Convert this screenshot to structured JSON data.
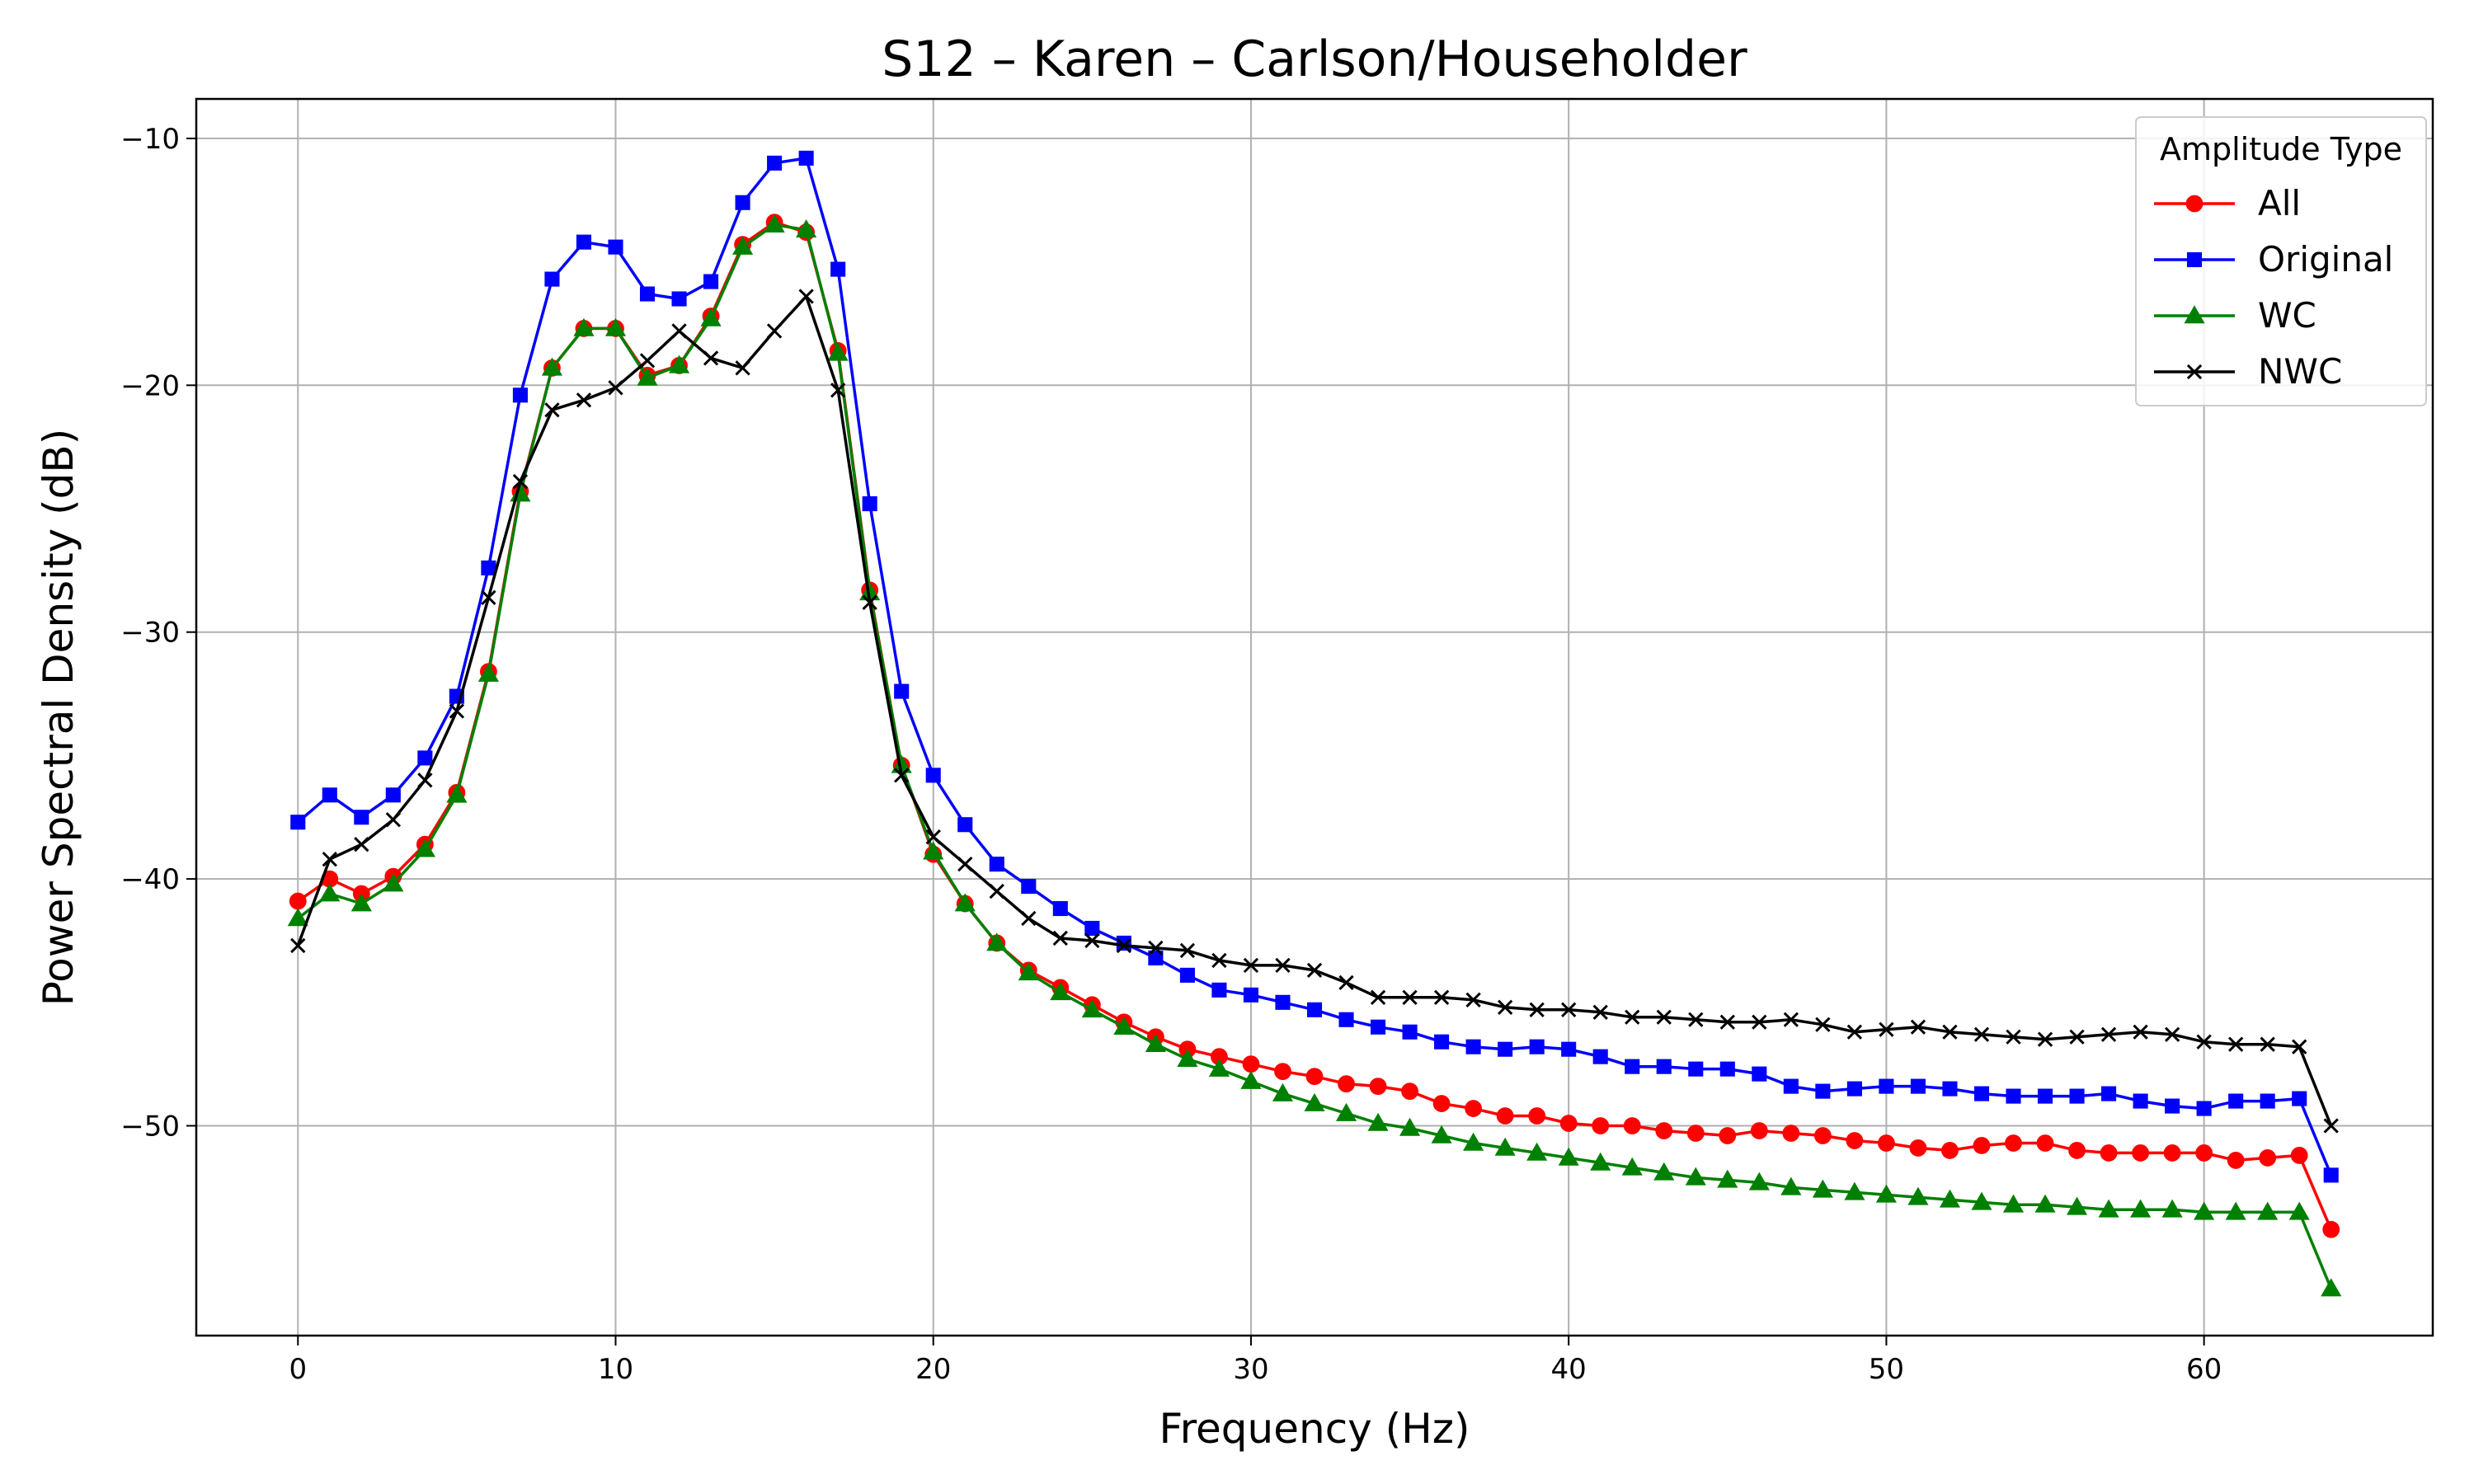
{
  "chart_data": {
    "type": "line",
    "title": "S12 – Karen – Carlson/Householder",
    "xlabel": "Frequency (Hz)",
    "ylabel": "Power Spectral Density (dB)",
    "xlim": [
      -3.2,
      67.2
    ],
    "ylim": [
      -58.5,
      -8.4
    ],
    "xticks": [
      0,
      10,
      20,
      30,
      40,
      50,
      60
    ],
    "yticks": [
      -50,
      -40,
      -30,
      -20,
      -10
    ],
    "ytick_labels": [
      "−50",
      "−40",
      "−30",
      "−20",
      "−10"
    ],
    "grid": true,
    "legend": {
      "title": "Amplitude Type",
      "placement": "top-right"
    },
    "x": [
      0,
      1,
      2,
      3,
      4,
      5,
      6,
      7,
      8,
      9,
      10,
      11,
      12,
      13,
      14,
      15,
      16,
      17,
      18,
      19,
      20,
      21,
      22,
      23,
      24,
      25,
      26,
      27,
      28,
      29,
      30,
      31,
      32,
      33,
      34,
      35,
      36,
      37,
      38,
      39,
      40,
      41,
      42,
      43,
      44,
      45,
      46,
      47,
      48,
      49,
      50,
      51,
      52,
      53,
      54,
      55,
      56,
      57,
      58,
      59,
      60,
      61,
      62,
      63,
      64
    ],
    "series": [
      {
        "name": "All",
        "color": "#ff0000",
        "marker": "circle",
        "values": [
          -40.9,
          -40.0,
          -40.6,
          -39.9,
          -38.6,
          -36.5,
          -31.6,
          -24.3,
          -19.3,
          -17.7,
          -17.7,
          -19.6,
          -19.2,
          -17.2,
          -14.3,
          -13.4,
          -13.8,
          -18.6,
          -28.3,
          -35.4,
          -39.0,
          -41.0,
          -42.6,
          -43.7,
          -44.4,
          -45.1,
          -45.8,
          -46.4,
          -46.9,
          -47.2,
          -47.5,
          -47.8,
          -48.0,
          -48.3,
          -48.4,
          -48.6,
          -49.1,
          -49.3,
          -49.6,
          -49.6,
          -49.9,
          -50.0,
          -50.0,
          -50.2,
          -50.3,
          -50.4,
          -50.2,
          -50.3,
          -50.4,
          -50.6,
          -50.7,
          -50.9,
          -51.0,
          -50.8,
          -50.7,
          -50.7,
          -51.0,
          -51.1,
          -51.1,
          -51.1,
          -51.1,
          -51.4,
          -51.3,
          -51.2,
          -54.2
        ]
      },
      {
        "name": "Original",
        "color": "#0000ff",
        "marker": "square",
        "values": [
          -37.7,
          -36.6,
          -37.5,
          -36.6,
          -35.1,
          -32.6,
          -27.4,
          -20.4,
          -15.7,
          -14.2,
          -14.4,
          -16.3,
          -16.5,
          -15.8,
          -12.6,
          -11.0,
          -10.8,
          -15.3,
          -24.8,
          -32.4,
          -35.8,
          -37.8,
          -39.4,
          -40.3,
          -41.2,
          -42.0,
          -42.6,
          -43.2,
          -43.9,
          -44.5,
          -44.7,
          -45.0,
          -45.3,
          -45.7,
          -46.0,
          -46.2,
          -46.6,
          -46.8,
          -46.9,
          -46.8,
          -46.9,
          -47.2,
          -47.6,
          -47.6,
          -47.7,
          -47.7,
          -47.9,
          -48.4,
          -48.6,
          -48.5,
          -48.4,
          -48.4,
          -48.5,
          -48.7,
          -48.8,
          -48.8,
          -48.8,
          -48.7,
          -49.0,
          -49.2,
          -49.3,
          -49.0,
          -49.0,
          -48.9,
          -52.0
        ]
      },
      {
        "name": "WC",
        "color": "#008000",
        "marker": "triangle",
        "values": [
          -41.6,
          -40.6,
          -41.0,
          -40.2,
          -38.8,
          -36.6,
          -31.7,
          -24.4,
          -19.3,
          -17.7,
          -17.7,
          -19.7,
          -19.2,
          -17.3,
          -14.4,
          -13.5,
          -13.7,
          -18.7,
          -28.4,
          -35.4,
          -38.9,
          -41.0,
          -42.6,
          -43.8,
          -44.6,
          -45.3,
          -46.0,
          -46.7,
          -47.3,
          -47.7,
          -48.2,
          -48.7,
          -49.1,
          -49.5,
          -49.9,
          -50.1,
          -50.4,
          -50.7,
          -50.9,
          -51.1,
          -51.3,
          -51.5,
          -51.7,
          -51.9,
          -52.1,
          -52.2,
          -52.3,
          -52.5,
          -52.6,
          -52.7,
          -52.8,
          -52.9,
          -53.0,
          -53.1,
          -53.2,
          -53.2,
          -53.3,
          -53.4,
          -53.4,
          -53.4,
          -53.5,
          -53.5,
          -53.5,
          -53.5,
          -56.6
        ]
      },
      {
        "name": "NWC",
        "color": "#000000",
        "marker": "x",
        "values": [
          -42.7,
          -39.2,
          -38.6,
          -37.6,
          -36.0,
          -33.2,
          -28.6,
          -23.9,
          -21.0,
          -20.6,
          -20.1,
          -19.0,
          -17.8,
          -18.9,
          -19.3,
          -17.8,
          -16.4,
          -20.2,
          -28.8,
          -35.8,
          -38.3,
          -39.4,
          -40.5,
          -41.6,
          -42.4,
          -42.5,
          -42.7,
          -42.8,
          -42.9,
          -43.3,
          -43.5,
          -43.5,
          -43.7,
          -44.2,
          -44.8,
          -44.8,
          -44.8,
          -44.9,
          -45.2,
          -45.3,
          -45.3,
          -45.4,
          -45.6,
          -45.6,
          -45.7,
          -45.8,
          -45.8,
          -45.7,
          -45.9,
          -46.2,
          -46.1,
          -46.0,
          -46.2,
          -46.3,
          -46.4,
          -46.5,
          -46.4,
          -46.3,
          -46.2,
          -46.3,
          -46.6,
          -46.7,
          -46.7,
          -46.8,
          -50.0
        ]
      }
    ]
  }
}
